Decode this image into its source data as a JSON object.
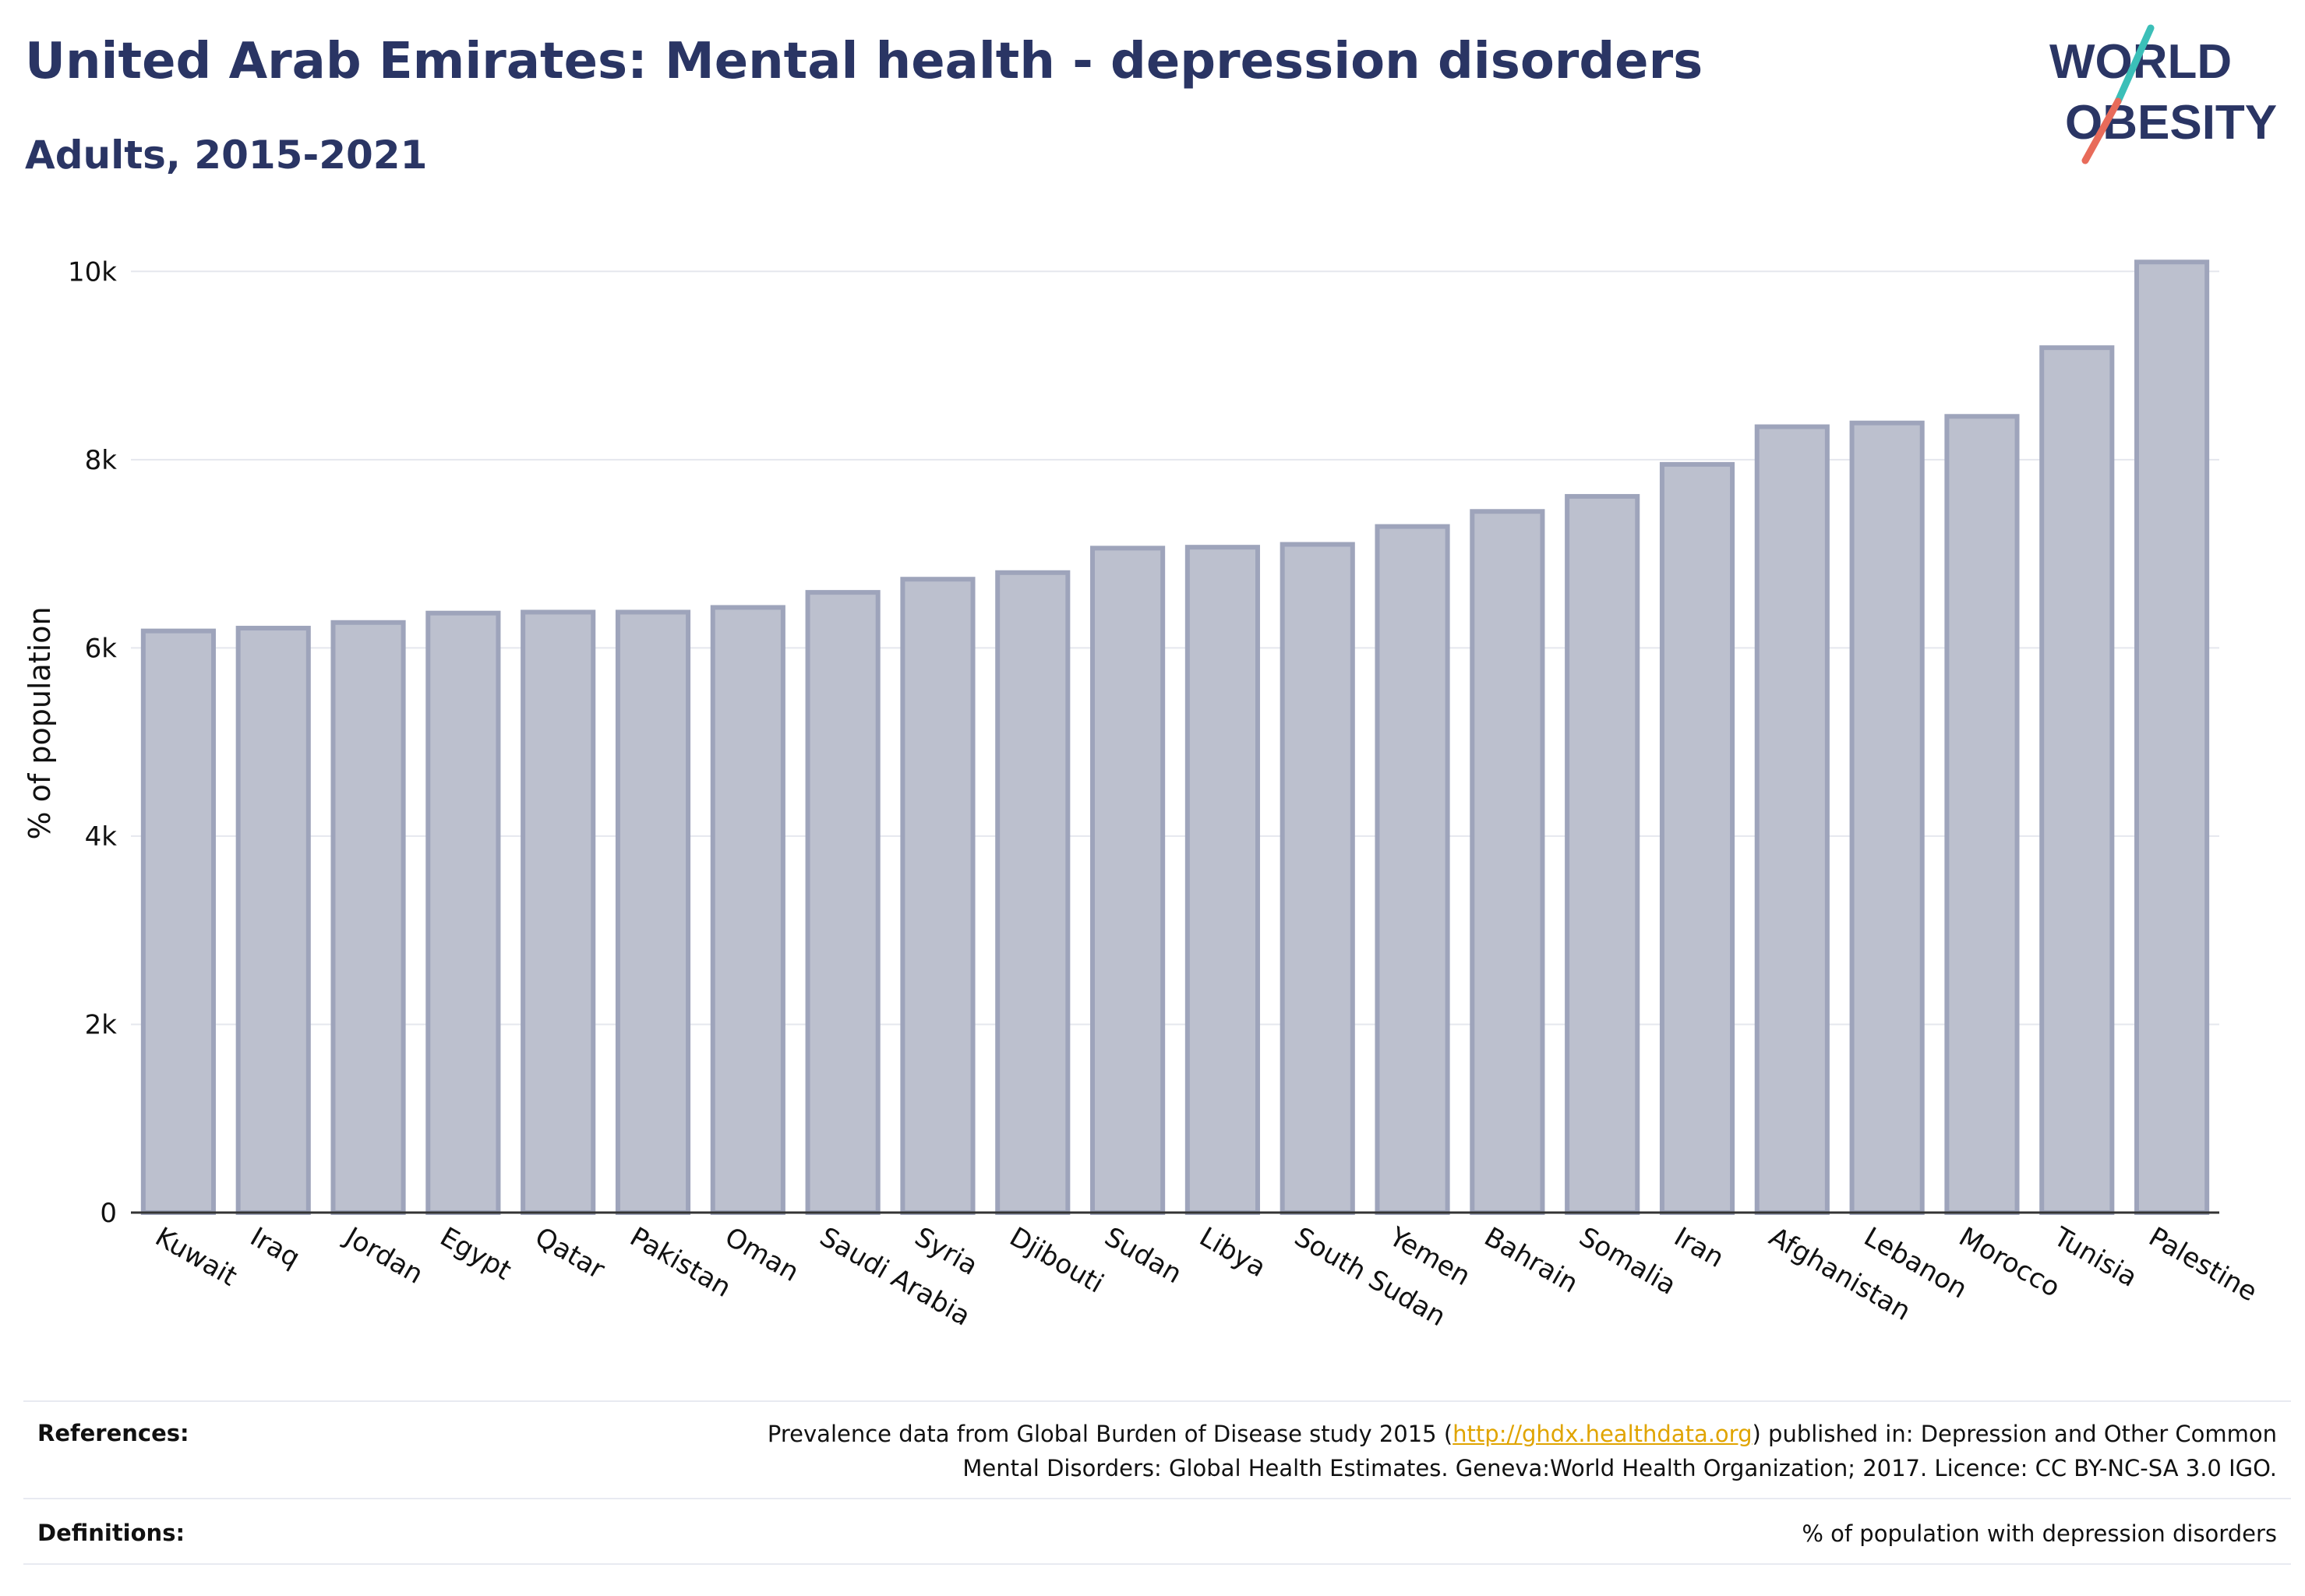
{
  "header": {
    "title": "United Arab Emirates: Mental health - depression disorders",
    "subtitle": "Adults, 2015-2021"
  },
  "logo": {
    "line1": "WORLD",
    "line2": "OBESITY",
    "accent_teal": "#3bbfb8",
    "accent_coral": "#e86b5a",
    "text_color": "#2a3564"
  },
  "chart_data": {
    "type": "bar",
    "ylabel": "% of population",
    "xlabel": "",
    "ylim": [
      0,
      10400
    ],
    "yticks": [
      0,
      2000,
      4000,
      6000,
      8000,
      10000
    ],
    "ytick_labels": [
      "0",
      "2k",
      "4k",
      "6k",
      "8k",
      "10k"
    ],
    "grid": true,
    "bar_fill": "#bcc0ce",
    "bar_stroke": "#9ea4bb",
    "categories": [
      "Kuwait",
      "Iraq",
      "Jordan",
      "Egypt",
      "Qatar",
      "Pakistan",
      "Oman",
      "Saudi Arabia",
      "Syria",
      "Djibouti",
      "Sudan",
      "Libya",
      "South Sudan",
      "Yemen",
      "Bahrain",
      "Somalia",
      "Iran",
      "Afghanistan",
      "Lebanon",
      "Morocco",
      "Tunisia",
      "Palestine"
    ],
    "values": [
      6180,
      6210,
      6270,
      6370,
      6380,
      6380,
      6430,
      6590,
      6730,
      6800,
      7060,
      7070,
      7100,
      7290,
      7450,
      7610,
      7950,
      8350,
      8390,
      8460,
      9190,
      10100
    ]
  },
  "footer": {
    "references_label": "References:",
    "references_text_1": "Prevalence data from Global Burden of Disease study 2015 (",
    "references_link": "http://ghdx.healthdata.org",
    "references_text_2": ") published in: Depression and Other Common",
    "references_text_3": "Mental Disorders: Global Health Estimates. Geneva:World Health Organization; 2017. Licence: CC BY-NC-SA 3.0 IGO.",
    "definitions_label": "Definitions:",
    "definitions_text": "% of population with depression disorders"
  }
}
